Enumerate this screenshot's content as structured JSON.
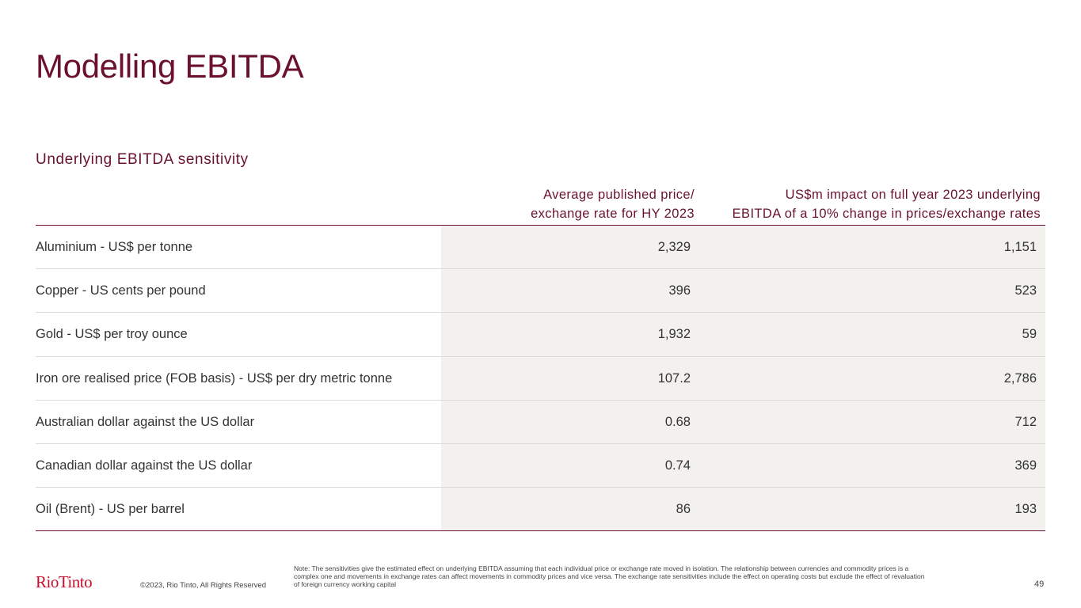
{
  "slide": {
    "title": "Modelling EBITDA",
    "subtitle": "Underlying EBITDA sensitivity"
  },
  "table": {
    "headers": {
      "price_line1": "Average published price/",
      "price_line2": "exchange rate for HY 2023",
      "impact_line1": "US$m impact on full year 2023 underlying",
      "impact_line2": "EBITDA of a 10% change in prices/exchange rates"
    },
    "rows": [
      {
        "label": "Aluminium - US$ per tonne",
        "price": "2,329",
        "impact": "1,151"
      },
      {
        "label": "Copper - US cents per pound",
        "price": "396",
        "impact": "523"
      },
      {
        "label": "Gold - US$ per troy ounce",
        "price": "1,932",
        "impact": "59"
      },
      {
        "label": "Iron ore realised price (FOB basis) - US$ per dry metric tonne",
        "price": "107.2",
        "impact": "2,786"
      },
      {
        "label": "Australian dollar against the US dollar",
        "price": "0.68",
        "impact": "712"
      },
      {
        "label": "Canadian dollar against the US dollar",
        "price": "0.74",
        "impact": "369"
      },
      {
        "label": "Oil (Brent) - US per barrel",
        "price": "86",
        "impact": "193"
      }
    ]
  },
  "footer": {
    "logo_text": "RioTinto",
    "copyright": "©2023, Rio Tinto, All Rights Reserved",
    "note": "Note: The sensitivities give the estimated effect on underlying EBITDA assuming that each individual price or exchange rate moved in isolation. The relationship between currencies and commodity prices is a complex one and movements in exchange rates can affect movements in commodity prices and vice versa. The exchange rate sensitivities include the effect on operating costs but exclude the effect of revaluation of foreign currency working capital",
    "page_number": "49"
  },
  "colors": {
    "brand_maroon": "#6b1030",
    "logo_red": "#c8102e",
    "shade": "#f2f1ee"
  }
}
